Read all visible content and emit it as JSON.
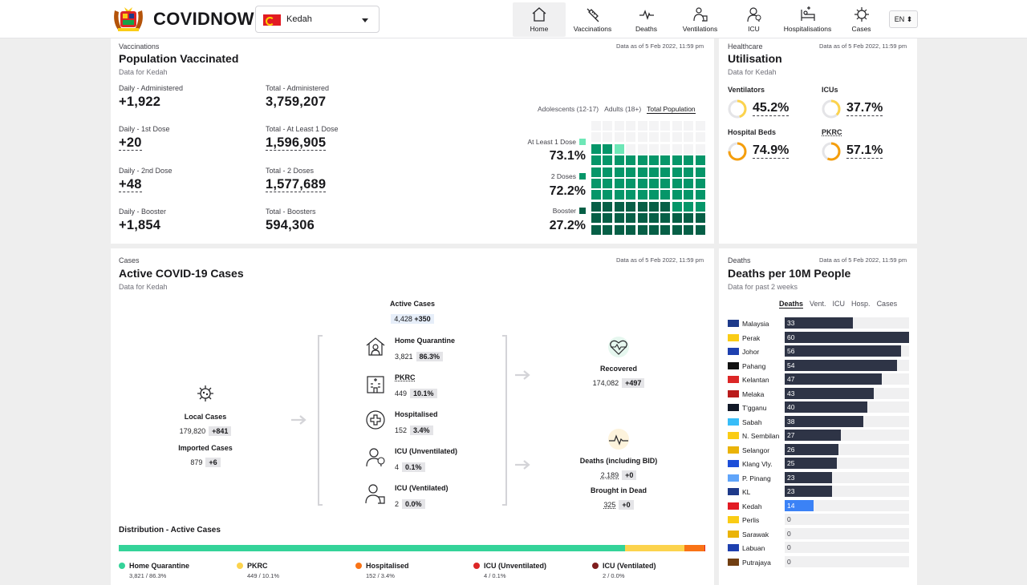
{
  "header": {
    "brand": "COVIDNOW",
    "state": "Kedah",
    "nav": [
      {
        "label": "Home",
        "icon": "home-icon"
      },
      {
        "label": "Vaccinations",
        "icon": "syringe-icon"
      },
      {
        "label": "Deaths",
        "icon": "pulse-icon"
      },
      {
        "label": "Ventilations",
        "icon": "ventilator-icon"
      },
      {
        "label": "ICU",
        "icon": "icu-icon"
      },
      {
        "label": "Hospitalisations",
        "icon": "hospital-bed-icon"
      },
      {
        "label": "Cases",
        "icon": "virus-icon"
      }
    ],
    "lang": "EN ⬍"
  },
  "vaccination": {
    "eyebrow": "Vaccinations",
    "title": "Population Vaccinated",
    "subtitle": "Data for Kedah",
    "asof": "Data as of 5 Feb 2022, 11:59 pm",
    "stats": [
      {
        "label": "Daily - Administered",
        "value": "+1,922"
      },
      {
        "label": "Total - Administered",
        "value": "3,759,207"
      },
      {
        "label": "Daily - 1st Dose",
        "value": "+20"
      },
      {
        "label": "Total - At Least 1 Dose",
        "value": "1,596,905"
      },
      {
        "label": "Daily - 2nd Dose",
        "value": "+48"
      },
      {
        "label": "Total - 2 Doses",
        "value": "1,577,689"
      },
      {
        "label": "Daily - Booster",
        "value": "+1,854"
      },
      {
        "label": "Total - Boosters",
        "value": "594,306"
      }
    ],
    "tabs": [
      "Adolescents (12-17)",
      "Adults (18+)",
      "Total Population"
    ],
    "doses": [
      {
        "label": "At Least 1 Dose",
        "value": "73.1%",
        "color": "#6ee7b7"
      },
      {
        "label": "2 Doses",
        "value": "72.2%",
        "color": "#059669"
      },
      {
        "label": "Booster",
        "value": "27.2%",
        "color": "#065f46"
      }
    ]
  },
  "healthcare": {
    "eyebrow": "Healthcare",
    "title": "Utilisation",
    "subtitle": "Data for Kedah",
    "asof": "Data as of 5 Feb 2022, 11:59 pm",
    "items": [
      {
        "label": "Ventilators",
        "value": "45.2%",
        "fraction": 0.452,
        "color": "#fcd34d"
      },
      {
        "label": "ICUs",
        "value": "37.7%",
        "fraction": 0.377,
        "color": "#fcd34d"
      },
      {
        "label": "Hospital Beds",
        "value": "74.9%",
        "fraction": 0.749,
        "color": "#f59e0b"
      },
      {
        "label": "PKRC",
        "value": "57.1%",
        "fraction": 0.571,
        "color": "#f59e0b"
      }
    ]
  },
  "cases": {
    "eyebrow": "Cases",
    "title": "Active COVID-19 Cases",
    "subtitle": "Data for Kedah",
    "asof": "Data as of 5 Feb 2022, 11:59 pm",
    "local": {
      "label": "Local Cases",
      "value": "179,820",
      "delta": "+841"
    },
    "imported": {
      "label": "Imported Cases",
      "value": "879",
      "delta": "+6"
    },
    "active": {
      "label": "Active Cases",
      "value": "4,428",
      "delta": "+350"
    },
    "breakdown": [
      {
        "label": "Home Quarantine",
        "value": "3,821",
        "pct": "86.3%"
      },
      {
        "label": "PKRC",
        "value": "449",
        "pct": "10.1%"
      },
      {
        "label": "Hospitalised",
        "value": "152",
        "pct": "3.4%"
      },
      {
        "label": "ICU (Unventilated)",
        "value": "4",
        "pct": "0.1%"
      },
      {
        "label": "ICU (Ventilated)",
        "value": "2",
        "pct": "0.0%"
      }
    ],
    "recovered": {
      "label": "Recovered",
      "value": "174,082",
      "delta": "+497"
    },
    "deaths": {
      "label": "Deaths (including BID)",
      "value": "2,189",
      "delta": "+0"
    },
    "bid": {
      "label": "Brought in Dead",
      "value": "325",
      "delta": "+0"
    },
    "distribution": {
      "title": "Distribution - Active Cases",
      "segments": [
        {
          "label": "Home Quarantine",
          "sub": "3,821 / 86.3%",
          "share": 86.3,
          "color": "#34d399"
        },
        {
          "label": "PKRC",
          "sub": "449 / 10.1%",
          "share": 10.1,
          "color": "#fcd34d"
        },
        {
          "label": "Hospitalised",
          "sub": "152 / 3.4%",
          "share": 3.4,
          "color": "#f97316"
        },
        {
          "label": "ICU (Unventilated)",
          "sub": "4 / 0.1%",
          "share": 0.1,
          "color": "#dc2626"
        },
        {
          "label": "ICU (Ventilated)",
          "sub": "2 / 0.0%",
          "share": 0.0,
          "color": "#7f1d1d"
        }
      ]
    }
  },
  "deaths": {
    "eyebrow": "Deaths",
    "title": "Deaths per 10M People",
    "subtitle": "Data for past 2 weeks",
    "asof": "Data as of 5 Feb 2022, 11:59 pm",
    "tabs": [
      "Deaths",
      "Vent.",
      "ICU",
      "Hosp.",
      "Cases"
    ],
    "max": 60,
    "rows": [
      {
        "name": "Malaysia",
        "value": 33,
        "flag": "#1e3a8a"
      },
      {
        "name": "Perak",
        "value": 60,
        "flag": "#facc15"
      },
      {
        "name": "Johor",
        "value": 56,
        "flag": "#1e40af"
      },
      {
        "name": "Pahang",
        "value": 54,
        "flag": "#111111"
      },
      {
        "name": "Kelantan",
        "value": 47,
        "flag": "#dc2626"
      },
      {
        "name": "Melaka",
        "value": 43,
        "flag": "#b91c1c"
      },
      {
        "name": "T'gganu",
        "value": 40,
        "flag": "#111827"
      },
      {
        "name": "Sabah",
        "value": 38,
        "flag": "#38bdf8"
      },
      {
        "name": "N. Sembilan",
        "value": 27,
        "flag": "#facc15"
      },
      {
        "name": "Selangor",
        "value": 26,
        "flag": "#eab308"
      },
      {
        "name": "Klang Vly.",
        "value": 25,
        "flag": "#1d4ed8"
      },
      {
        "name": "P. Pinang",
        "value": 23,
        "flag": "#60a5fa"
      },
      {
        "name": "KL",
        "value": 23,
        "flag": "#1e3a8a"
      },
      {
        "name": "Kedah",
        "value": 14,
        "flag": "#e21b23",
        "highlight": true
      },
      {
        "name": "Perlis",
        "value": 0,
        "flag": "#facc15"
      },
      {
        "name": "Sarawak",
        "value": 0,
        "flag": "#eab308"
      },
      {
        "name": "Labuan",
        "value": 0,
        "flag": "#1e40af"
      },
      {
        "name": "Putrajaya",
        "value": 0,
        "flag": "#713f12"
      }
    ]
  }
}
